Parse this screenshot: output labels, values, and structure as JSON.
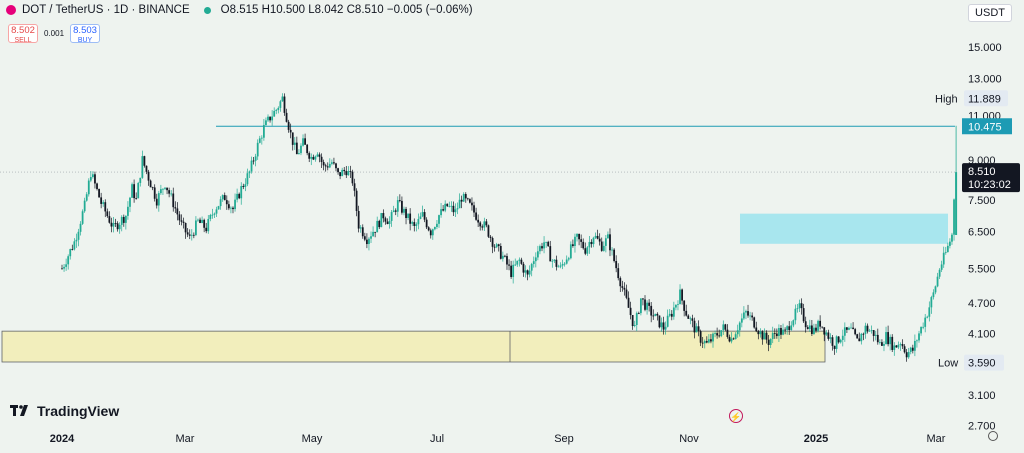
{
  "header": {
    "symbol": "DOT / TetherUS · 1D · BINANCE",
    "ohlc": "O8.515 H10.500 L8.042 C8.510 −0.005 (−0.06%)"
  },
  "trade": {
    "sell_price": "8.502",
    "sell_label": "SELL",
    "spread": "0.001",
    "buy_price": "8.503",
    "buy_label": "BUY"
  },
  "currency": "USDT",
  "brand": "TradingView",
  "colors": {
    "up": "#22ab94",
    "down": "#131722",
    "zone": "#f2eebc",
    "target": "#a8e6ee",
    "resistance": "#1d9bb4"
  },
  "chart_data": {
    "type": "candlestick",
    "y_scale": "log",
    "ylim": [
      2.7,
      17.5
    ],
    "y_ticks": [
      "15.000",
      "13.000",
      "11.000",
      "9.000",
      "7.500",
      "6.500",
      "5.500",
      "4.700",
      "4.100",
      "3.590",
      "3.100",
      "2.700"
    ],
    "x_ticks": [
      "2024",
      "Mar",
      "May",
      "Jul",
      "Sep",
      "Nov",
      "2025",
      "Mar"
    ],
    "x_start": "2024-01-01",
    "x_end": "2025-03-10",
    "last_price": "8.510",
    "countdown": "10:23:02",
    "high_label": "High",
    "high_value": "11.889",
    "low_label": "Low",
    "low_value": "3.590",
    "resistance_value": "10.475",
    "demand_zone": [
      3.6,
      4.14
    ],
    "target_zone": [
      6.15,
      7.05
    ],
    "close_path": [
      [
        "2024-01-01",
        5.5
      ],
      [
        "2024-01-07",
        6.2
      ],
      [
        "2024-01-12",
        7.3
      ],
      [
        "2024-01-15",
        8.5
      ],
      [
        "2024-01-20",
        7.4
      ],
      [
        "2024-01-26",
        6.6
      ],
      [
        "2024-02-01",
        7.0
      ],
      [
        "2024-02-04",
        7.9
      ],
      [
        "2024-02-06",
        7.5
      ],
      [
        "2024-02-09",
        9.0
      ],
      [
        "2024-02-12",
        8.3
      ],
      [
        "2024-02-16",
        7.5
      ],
      [
        "2024-02-20",
        8.1
      ],
      [
        "2024-02-24",
        7.4
      ],
      [
        "2024-02-28",
        6.7
      ],
      [
        "2024-03-03",
        6.3
      ],
      [
        "2024-03-07",
        6.8
      ],
      [
        "2024-03-11",
        6.6
      ],
      [
        "2024-03-15",
        7.2
      ],
      [
        "2024-03-20",
        7.6
      ],
      [
        "2024-03-24",
        7.2
      ],
      [
        "2024-03-28",
        7.9
      ],
      [
        "2024-04-01",
        8.5
      ],
      [
        "2024-04-05",
        9.6
      ],
      [
        "2024-04-08",
        10.4
      ],
      [
        "2024-04-11",
        10.9
      ],
      [
        "2024-04-14",
        11.3
      ],
      [
        "2024-04-17",
        11.89
      ],
      [
        "2024-04-21",
        10.1
      ],
      [
        "2024-04-24",
        9.2
      ],
      [
        "2024-04-27",
        9.7
      ],
      [
        "2024-05-01",
        9.1
      ],
      [
        "2024-05-04",
        9.4
      ],
      [
        "2024-05-07",
        8.7
      ],
      [
        "2024-05-11",
        8.9
      ],
      [
        "2024-05-14",
        8.4
      ],
      [
        "2024-05-18",
        8.6
      ],
      [
        "2024-05-21",
        8.2
      ],
      [
        "2024-05-24",
        6.7
      ],
      [
        "2024-05-28",
        6.3
      ],
      [
        "2024-06-01",
        6.6
      ],
      [
        "2024-06-05",
        7.0
      ],
      [
        "2024-06-08",
        6.8
      ],
      [
        "2024-06-12",
        7.4
      ],
      [
        "2024-06-16",
        7.0
      ],
      [
        "2024-06-20",
        6.6
      ],
      [
        "2024-06-24",
        7.0
      ],
      [
        "2024-06-28",
        6.5
      ],
      [
        "2024-07-02",
        7.0
      ],
      [
        "2024-07-06",
        7.3
      ],
      [
        "2024-07-10",
        7.1
      ],
      [
        "2024-07-13",
        7.6
      ],
      [
        "2024-07-17",
        7.3
      ],
      [
        "2024-07-21",
        6.9
      ],
      [
        "2024-07-25",
        6.6
      ],
      [
        "2024-07-29",
        6.1
      ],
      [
        "2024-08-02",
        5.8
      ],
      [
        "2024-08-06",
        5.4
      ],
      [
        "2024-08-10",
        5.7
      ],
      [
        "2024-08-14",
        5.3
      ],
      [
        "2024-08-18",
        5.9
      ],
      [
        "2024-08-22",
        6.2
      ],
      [
        "2024-08-26",
        5.7
      ],
      [
        "2024-08-30",
        5.5
      ],
      [
        "2024-09-03",
        5.9
      ],
      [
        "2024-09-07",
        6.3
      ],
      [
        "2024-09-11",
        6.0
      ],
      [
        "2024-09-15",
        6.4
      ],
      [
        "2024-09-19",
        6.1
      ],
      [
        "2024-09-22",
        6.3
      ],
      [
        "2024-09-25",
        5.7
      ],
      [
        "2024-09-28",
        5.2
      ],
      [
        "2024-10-02",
        4.6
      ],
      [
        "2024-10-05",
        4.2
      ],
      [
        "2024-10-08",
        4.8
      ],
      [
        "2024-10-11",
        4.6
      ],
      [
        "2024-10-15",
        4.4
      ],
      [
        "2024-10-19",
        4.2
      ],
      [
        "2024-10-23",
        4.5
      ],
      [
        "2024-10-27",
        4.9
      ],
      [
        "2024-10-30",
        4.5
      ],
      [
        "2024-11-03",
        4.2
      ],
      [
        "2024-11-06",
        4.0
      ],
      [
        "2024-11-09",
        3.9
      ],
      [
        "2024-11-13",
        4.05
      ],
      [
        "2024-11-17",
        4.2
      ],
      [
        "2024-11-21",
        4.0
      ],
      [
        "2024-11-25",
        4.3
      ],
      [
        "2024-11-28",
        4.5
      ],
      [
        "2024-12-02",
        4.3
      ],
      [
        "2024-12-05",
        4.1
      ],
      [
        "2024-12-09",
        3.95
      ],
      [
        "2024-12-13",
        4.15
      ],
      [
        "2024-12-17",
        4.1
      ],
      [
        "2024-12-20",
        4.35
      ],
      [
        "2024-12-24",
        4.6
      ],
      [
        "2024-12-27",
        4.3
      ],
      [
        "2024-12-31",
        4.15
      ],
      [
        "2025-01-03",
        4.3
      ],
      [
        "2025-01-07",
        4.05
      ],
      [
        "2025-01-10",
        3.9
      ],
      [
        "2025-01-14",
        4.1
      ],
      [
        "2025-01-18",
        4.15
      ],
      [
        "2025-01-21",
        3.95
      ],
      [
        "2025-01-25",
        4.2
      ],
      [
        "2025-01-29",
        4.1
      ],
      [
        "2025-02-01",
        3.9
      ],
      [
        "2025-02-04",
        4.05
      ],
      [
        "2025-02-08",
        3.85
      ],
      [
        "2025-02-11",
        3.95
      ],
      [
        "2025-02-14",
        3.75
      ],
      [
        "2025-02-17",
        3.8
      ],
      [
        "2025-02-20",
        4.1
      ],
      [
        "2025-02-24",
        4.5
      ],
      [
        "2025-02-27",
        4.9
      ],
      [
        "2025-03-02",
        5.5
      ],
      [
        "2025-03-05",
        5.9
      ],
      [
        "2025-03-08",
        6.4
      ],
      [
        "2025-03-09",
        7.6
      ],
      [
        "2025-03-10",
        8.51
      ]
    ]
  }
}
